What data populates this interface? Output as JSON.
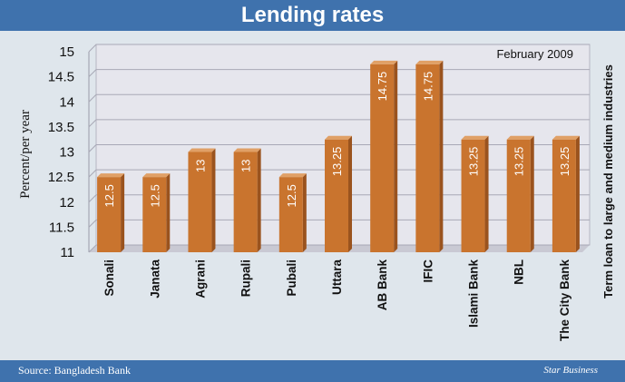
{
  "chart_data": {
    "type": "bar",
    "title": "Lending rates",
    "subtitle": "February 2009",
    "ylabel": "Percent/per year",
    "side_label": "Term loan to large and medium industries",
    "source": "Source: Bangladesh Bank",
    "credit": "Star Business",
    "categories": [
      "Sonali",
      "Janata",
      "Agrani",
      "Rupali",
      "Pubali",
      "Uttara",
      "AB Bank",
      "IFIC",
      "Islami Bank",
      "NBL",
      "The City Bank"
    ],
    "values": [
      12.5,
      12.5,
      13,
      13,
      12.5,
      13.25,
      14.75,
      14.75,
      13.25,
      13.25,
      13.25
    ],
    "value_labels": [
      "12.5",
      "12.5",
      "13",
      "13",
      "12.5",
      "13.25",
      "14.75",
      "14.75",
      "13.25",
      "13.25",
      "13.25"
    ],
    "ylim": [
      11,
      15
    ],
    "yticks": [
      "11",
      "11.5",
      "12",
      "12.5",
      "13",
      "13.5",
      "14",
      "14.5",
      "15"
    ],
    "grid": true,
    "colors": {
      "bar": "#c9742e",
      "bar_top": "#e0a066",
      "bar_side": "#9a531e",
      "plot_bg": "#e6e6ed",
      "frame": "#3f72ad"
    }
  }
}
